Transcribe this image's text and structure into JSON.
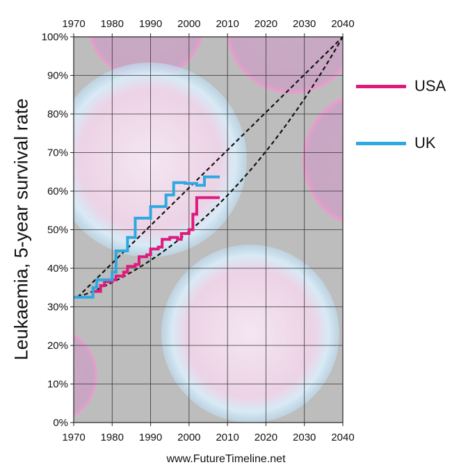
{
  "chart_data": {
    "type": "line",
    "title": "",
    "xlabel": "",
    "ylabel": "Leukaemia, 5-year survival rate",
    "xlim": [
      1970,
      2040
    ],
    "ylim": [
      0,
      100
    ],
    "xticks": [
      "1970",
      "1980",
      "1990",
      "2000",
      "2010",
      "2020",
      "2030",
      "2040"
    ],
    "yticks": [
      "0%",
      "10%",
      "20%",
      "30%",
      "40%",
      "50%",
      "60%",
      "70%",
      "80%",
      "90%",
      "100%"
    ],
    "grid": true,
    "legend_position": "right",
    "series": [
      {
        "name": "USA",
        "color": "#e0197d",
        "x": [
          1975,
          1977,
          1977,
          1978,
          1978,
          1980,
          1980,
          1981,
          1981,
          1983,
          1983,
          1984,
          1984,
          1986,
          1986,
          1987,
          1987,
          1989,
          1989,
          1990,
          1990,
          1992,
          1992,
          1993,
          1993,
          1995,
          1995,
          1997,
          1997,
          1998,
          1998,
          2000,
          2000,
          2001,
          2001,
          2002,
          2002,
          2008
        ],
        "y": [
          34,
          34,
          35.5,
          35.5,
          36.5,
          36.5,
          37,
          37,
          38,
          38,
          39,
          39,
          40.5,
          40.5,
          41,
          41,
          43,
          43,
          43.5,
          43.5,
          45,
          45,
          45.5,
          45.5,
          47.5,
          47.5,
          48,
          48,
          47.5,
          47.5,
          49,
          49,
          50,
          50,
          54,
          54,
          58.3,
          58.3
        ]
      },
      {
        "name": "UK",
        "color": "#2ea8e0",
        "x": [
          1970,
          1975,
          1975,
          1976,
          1976,
          1980,
          1980,
          1981,
          1981,
          1984,
          1984,
          1986,
          1986,
          1990,
          1990,
          1994,
          1994,
          1996,
          1996,
          1999,
          1999,
          2002,
          2002,
          2004,
          2004,
          2008
        ],
        "y": [
          32.5,
          32.5,
          35,
          35,
          37,
          37,
          39,
          39,
          44.5,
          44.5,
          48,
          48,
          53,
          53,
          56,
          56,
          59,
          59,
          62.2,
          62.2,
          62,
          62,
          61.5,
          61.5,
          63.7,
          63.7
        ]
      }
    ],
    "trend_lines": [
      {
        "name": "",
        "style": "dashed",
        "x": [
          1971,
          2040
        ],
        "y": [
          32.5,
          100
        ]
      },
      {
        "name": "",
        "style": "dashed",
        "x": [
          1971,
          2040
        ],
        "y": [
          32.5,
          100
        ],
        "curve": "convex"
      }
    ],
    "background": "leukaemia cell microscopy image"
  },
  "ylabel_text": "Leukaemia, 5-year survival rate",
  "legend": {
    "usa": "USA",
    "uk": "UK"
  },
  "footer": "www.FutureTimeline.net",
  "colors": {
    "usa": "#e0197d",
    "uk": "#2ea8e0",
    "plot_bg": "#bdbdbd"
  }
}
